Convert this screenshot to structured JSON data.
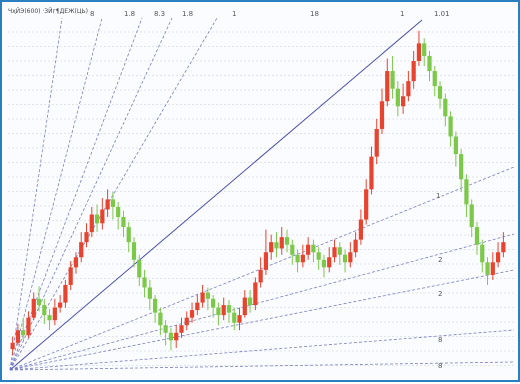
{
  "header": {
    "title": "ЧҳЙЭ(600) ·ЗЙг¶ДЕЖ(ЦЬ)"
  },
  "top_labels": [
    "8",
    "1.8",
    "8.3",
    "1.8",
    "1",
    "18",
    "1",
    "1.01"
  ],
  "mid_labels": [
    "1",
    "2",
    "2",
    "8",
    "8"
  ],
  "colors": {
    "up": "#e8432e",
    "down": "#7cc94a",
    "fan_line": "#7a7fc0",
    "grid": "#d8dbe6",
    "frame": "#2a7fc1"
  },
  "chart_data": {
    "type": "candlestick",
    "fan_lines": 11,
    "candles": [
      {
        "o": 15,
        "c": 20,
        "h": 25,
        "l": 10
      },
      {
        "o": 20,
        "c": 30,
        "h": 35,
        "l": 18
      },
      {
        "o": 30,
        "c": 26,
        "h": 40,
        "l": 22
      },
      {
        "o": 26,
        "c": 40,
        "h": 45,
        "l": 24
      },
      {
        "o": 40,
        "c": 55,
        "h": 60,
        "l": 38
      },
      {
        "o": 55,
        "c": 50,
        "h": 65,
        "l": 45
      },
      {
        "o": 50,
        "c": 42,
        "h": 55,
        "l": 35
      },
      {
        "o": 42,
        "c": 38,
        "h": 47,
        "l": 30
      },
      {
        "o": 38,
        "c": 48,
        "h": 55,
        "l": 34
      },
      {
        "o": 48,
        "c": 52,
        "h": 58,
        "l": 44
      },
      {
        "o": 52,
        "c": 66,
        "h": 70,
        "l": 48
      },
      {
        "o": 66,
        "c": 80,
        "h": 85,
        "l": 62
      },
      {
        "o": 80,
        "c": 88,
        "h": 92,
        "l": 75
      },
      {
        "o": 88,
        "c": 100,
        "h": 108,
        "l": 84
      },
      {
        "o": 100,
        "c": 108,
        "h": 115,
        "l": 96
      },
      {
        "o": 108,
        "c": 122,
        "h": 128,
        "l": 104
      },
      {
        "o": 122,
        "c": 115,
        "h": 130,
        "l": 108
      },
      {
        "o": 115,
        "c": 126,
        "h": 135,
        "l": 110
      },
      {
        "o": 126,
        "c": 134,
        "h": 142,
        "l": 120
      },
      {
        "o": 134,
        "c": 128,
        "h": 140,
        "l": 118
      },
      {
        "o": 128,
        "c": 120,
        "h": 132,
        "l": 110
      },
      {
        "o": 120,
        "c": 112,
        "h": 125,
        "l": 104
      },
      {
        "o": 112,
        "c": 100,
        "h": 116,
        "l": 92
      },
      {
        "o": 100,
        "c": 86,
        "h": 104,
        "l": 80
      },
      {
        "o": 86,
        "c": 72,
        "h": 90,
        "l": 65
      },
      {
        "o": 72,
        "c": 64,
        "h": 78,
        "l": 56
      },
      {
        "o": 64,
        "c": 55,
        "h": 70,
        "l": 46
      },
      {
        "o": 55,
        "c": 44,
        "h": 58,
        "l": 36
      },
      {
        "o": 44,
        "c": 34,
        "h": 48,
        "l": 26
      },
      {
        "o": 34,
        "c": 28,
        "h": 38,
        "l": 18
      },
      {
        "o": 28,
        "c": 22,
        "h": 32,
        "l": 14
      },
      {
        "o": 22,
        "c": 28,
        "h": 34,
        "l": 16
      },
      {
        "o": 28,
        "c": 34,
        "h": 40,
        "l": 24
      },
      {
        "o": 34,
        "c": 40,
        "h": 45,
        "l": 30
      },
      {
        "o": 40,
        "c": 46,
        "h": 52,
        "l": 36
      },
      {
        "o": 46,
        "c": 52,
        "h": 58,
        "l": 42
      },
      {
        "o": 52,
        "c": 60,
        "h": 66,
        "l": 48
      },
      {
        "o": 60,
        "c": 55,
        "h": 64,
        "l": 46
      },
      {
        "o": 55,
        "c": 48,
        "h": 58,
        "l": 40
      },
      {
        "o": 48,
        "c": 42,
        "h": 52,
        "l": 34
      },
      {
        "o": 42,
        "c": 50,
        "h": 56,
        "l": 38
      },
      {
        "o": 50,
        "c": 44,
        "h": 54,
        "l": 36
      },
      {
        "o": 44,
        "c": 36,
        "h": 48,
        "l": 30
      },
      {
        "o": 36,
        "c": 42,
        "h": 48,
        "l": 30
      },
      {
        "o": 42,
        "c": 56,
        "h": 62,
        "l": 40
      },
      {
        "o": 56,
        "c": 50,
        "h": 62,
        "l": 44
      },
      {
        "o": 50,
        "c": 68,
        "h": 72,
        "l": 46
      },
      {
        "o": 68,
        "c": 78,
        "h": 88,
        "l": 64
      },
      {
        "o": 78,
        "c": 92,
        "h": 110,
        "l": 74
      },
      {
        "o": 92,
        "c": 100,
        "h": 106,
        "l": 86
      },
      {
        "o": 100,
        "c": 95,
        "h": 108,
        "l": 88
      },
      {
        "o": 95,
        "c": 104,
        "h": 112,
        "l": 90
      },
      {
        "o": 104,
        "c": 98,
        "h": 110,
        "l": 92
      },
      {
        "o": 98,
        "c": 90,
        "h": 102,
        "l": 82
      },
      {
        "o": 90,
        "c": 84,
        "h": 94,
        "l": 76
      },
      {
        "o": 84,
        "c": 90,
        "h": 98,
        "l": 80
      },
      {
        "o": 90,
        "c": 98,
        "h": 104,
        "l": 86
      },
      {
        "o": 98,
        "c": 92,
        "h": 102,
        "l": 84
      },
      {
        "o": 92,
        "c": 86,
        "h": 96,
        "l": 78
      },
      {
        "o": 86,
        "c": 80,
        "h": 90,
        "l": 72
      },
      {
        "o": 80,
        "c": 88,
        "h": 96,
        "l": 76
      },
      {
        "o": 88,
        "c": 96,
        "h": 102,
        "l": 84
      },
      {
        "o": 96,
        "c": 90,
        "h": 100,
        "l": 82
      },
      {
        "o": 90,
        "c": 84,
        "h": 94,
        "l": 76
      },
      {
        "o": 84,
        "c": 92,
        "h": 100,
        "l": 80
      },
      {
        "o": 92,
        "c": 102,
        "h": 108,
        "l": 88
      },
      {
        "o": 102,
        "c": 118,
        "h": 126,
        "l": 98
      },
      {
        "o": 118,
        "c": 142,
        "h": 150,
        "l": 114
      },
      {
        "o": 142,
        "c": 168,
        "h": 176,
        "l": 138
      },
      {
        "o": 168,
        "c": 190,
        "h": 198,
        "l": 162
      },
      {
        "o": 190,
        "c": 212,
        "h": 222,
        "l": 186
      },
      {
        "o": 212,
        "c": 236,
        "h": 246,
        "l": 208
      },
      {
        "o": 236,
        "c": 222,
        "h": 248,
        "l": 214
      },
      {
        "o": 222,
        "c": 208,
        "h": 228,
        "l": 200
      },
      {
        "o": 208,
        "c": 216,
        "h": 226,
        "l": 202
      },
      {
        "o": 216,
        "c": 228,
        "h": 236,
        "l": 212
      },
      {
        "o": 228,
        "c": 244,
        "h": 252,
        "l": 222
      },
      {
        "o": 244,
        "c": 258,
        "h": 268,
        "l": 240
      },
      {
        "o": 258,
        "c": 248,
        "h": 262,
        "l": 240
      },
      {
        "o": 248,
        "c": 236,
        "h": 252,
        "l": 228
      },
      {
        "o": 236,
        "c": 224,
        "h": 240,
        "l": 216
      },
      {
        "o": 224,
        "c": 214,
        "h": 228,
        "l": 206
      },
      {
        "o": 214,
        "c": 200,
        "h": 218,
        "l": 192
      },
      {
        "o": 200,
        "c": 184,
        "h": 204,
        "l": 176
      },
      {
        "o": 184,
        "c": 170,
        "h": 188,
        "l": 160
      },
      {
        "o": 170,
        "c": 150,
        "h": 174,
        "l": 140
      },
      {
        "o": 150,
        "c": 130,
        "h": 154,
        "l": 120
      },
      {
        "o": 130,
        "c": 112,
        "h": 134,
        "l": 104
      },
      {
        "o": 112,
        "c": 98,
        "h": 116,
        "l": 90
      },
      {
        "o": 98,
        "c": 84,
        "h": 102,
        "l": 76
      },
      {
        "o": 84,
        "c": 74,
        "h": 88,
        "l": 66
      },
      {
        "o": 74,
        "c": 84,
        "h": 92,
        "l": 70
      },
      {
        "o": 84,
        "c": 92,
        "h": 100,
        "l": 80
      },
      {
        "o": 92,
        "c": 100,
        "h": 108,
        "l": 88
      }
    ]
  }
}
